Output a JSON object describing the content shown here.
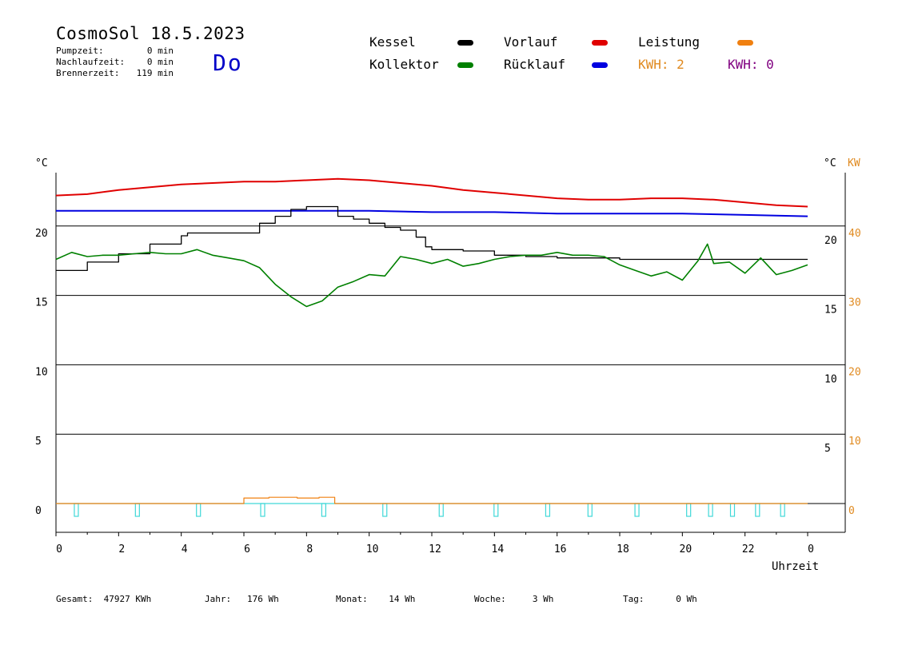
{
  "header": {
    "title": "CosmoSol 18.5.2023",
    "day": "Do",
    "stats": [
      {
        "label": "Pumpzeit:",
        "value": "0 min"
      },
      {
        "label": "Nachlaufzeit:",
        "value": "0 min"
      },
      {
        "label": "Brennerzeit:",
        "value": "119 min"
      }
    ]
  },
  "legend": {
    "kessel": {
      "label": "Kessel",
      "color": "#000000"
    },
    "vorlauf": {
      "label": "Vorlauf",
      "color": "#e00000"
    },
    "leistung": {
      "label": "Leistung",
      "color": "#f08010"
    },
    "kollektor": {
      "label": "Kollektor",
      "color": "#008000"
    },
    "ruecklauf": {
      "label": "Rücklauf",
      "color": "#0000e0"
    },
    "kwh_orange": "KWH: 2",
    "kwh_purple": "KWH: 0",
    "kwh_orange_color": "#e08a20",
    "kwh_purple_color": "#800080"
  },
  "axes": {
    "left_unit": "°C",
    "right_unit": "°C",
    "right_unit2": "KW",
    "xlabel": "Uhrzeit"
  },
  "footer": {
    "gesamt": "Gesamt:  47927 KWh",
    "jahr": "Jahr:   176 Wh",
    "monat": "Monat:    14 Wh",
    "woche": "Woche:     3 Wh",
    "tag": "Tag:      0 Wh"
  },
  "chart_data": {
    "type": "line",
    "x_ticks": [
      "0",
      "2",
      "4",
      "6",
      "8",
      "10",
      "12",
      "14",
      "16",
      "18",
      "20",
      "22",
      "0"
    ],
    "x_range": [
      0,
      24
    ],
    "y_left_ticks": [
      "0",
      "5",
      "10",
      "15",
      "20"
    ],
    "y_right_ticks": [
      "5",
      "10",
      "15",
      "20"
    ],
    "y_right2_ticks": [
      "0",
      "10",
      "20",
      "30",
      "40"
    ],
    "ylim": [
      -2,
      25
    ],
    "grid": true,
    "series": [
      {
        "name": "Vorlauf",
        "color": "#e00000",
        "x": [
          0,
          1,
          2,
          3,
          4,
          5,
          6,
          7,
          8,
          9,
          10,
          11,
          12,
          13,
          14,
          15,
          16,
          17,
          18,
          19,
          20,
          21,
          22,
          23,
          24
        ],
        "y": [
          22.2,
          22.3,
          22.6,
          22.8,
          23.0,
          23.1,
          23.2,
          23.2,
          23.3,
          23.4,
          23.3,
          23.1,
          22.9,
          22.6,
          22.4,
          22.2,
          22.0,
          21.9,
          21.9,
          22.0,
          22.0,
          21.9,
          21.7,
          21.5,
          21.4
        ]
      },
      {
        "name": "Rücklauf",
        "color": "#0000e0",
        "x": [
          0,
          2,
          4,
          6,
          8,
          10,
          12,
          14,
          16,
          18,
          20,
          22,
          24
        ],
        "y": [
          21.1,
          21.1,
          21.1,
          21.1,
          21.1,
          21.1,
          21.0,
          21.0,
          20.9,
          20.9,
          20.9,
          20.8,
          20.7
        ]
      },
      {
        "name": "Kessel",
        "color": "#000000",
        "x": [
          0,
          1,
          2,
          3,
          4,
          4.2,
          5,
          5.9,
          6.5,
          7,
          7.5,
          8,
          8.5,
          8.9,
          9.0,
          9.5,
          10,
          10.5,
          11,
          11.5,
          11.8,
          12,
          13,
          14,
          15,
          16,
          18,
          20,
          22,
          24
        ],
        "y": [
          16.8,
          17.4,
          18.0,
          18.7,
          19.3,
          19.5,
          19.5,
          19.5,
          20.2,
          20.7,
          21.2,
          21.4,
          21.4,
          21.4,
          20.7,
          20.5,
          20.2,
          19.9,
          19.7,
          19.2,
          18.5,
          18.3,
          18.2,
          17.9,
          17.8,
          17.7,
          17.6,
          17.6,
          17.6,
          17.6
        ]
      },
      {
        "name": "Kollektor",
        "color": "#008000",
        "x": [
          0,
          0.5,
          1,
          1.5,
          2,
          2.5,
          3,
          3.5,
          4,
          4.5,
          5,
          5.5,
          6,
          6.5,
          7,
          7.5,
          8,
          8.5,
          9,
          9.5,
          10,
          10.5,
          11,
          11.5,
          12,
          12.5,
          13,
          13.5,
          14,
          14.5,
          15,
          15.5,
          16,
          16.5,
          17,
          17.5,
          18,
          18.5,
          19,
          19.5,
          20,
          20.5,
          20.8,
          21,
          21.5,
          22,
          22.5,
          23,
          23.5,
          24
        ],
        "y": [
          17.6,
          18.1,
          17.8,
          17.9,
          17.9,
          18.0,
          18.1,
          18.0,
          18.0,
          18.3,
          17.9,
          17.7,
          17.5,
          17.0,
          15.8,
          14.9,
          14.2,
          14.6,
          15.6,
          16.0,
          16.5,
          16.4,
          17.8,
          17.6,
          17.3,
          17.6,
          17.1,
          17.3,
          17.6,
          17.8,
          17.9,
          17.9,
          18.1,
          17.9,
          17.9,
          17.8,
          17.2,
          16.8,
          16.4,
          16.7,
          16.1,
          17.5,
          18.7,
          17.3,
          17.4,
          16.6,
          17.7,
          16.5,
          16.8,
          17.2
        ]
      },
      {
        "name": "Leistung",
        "color": "#f08010",
        "x": [
          0,
          6.0,
          6.0,
          6.8,
          6.8,
          7.7,
          7.7,
          8.4,
          8.4,
          8.9,
          8.9,
          24
        ],
        "y": [
          0,
          0,
          0.4,
          0.4,
          0.45,
          0.45,
          0.4,
          0.4,
          0.45,
          0.45,
          0,
          0
        ]
      }
    ],
    "pump_markers_hours": [
      0.65,
      2.6,
      4.55,
      6.6,
      8.55,
      10.5,
      12.3,
      14.05,
      15.7,
      17.05,
      18.55,
      20.2,
      20.9,
      21.6,
      22.4,
      23.2
    ]
  }
}
